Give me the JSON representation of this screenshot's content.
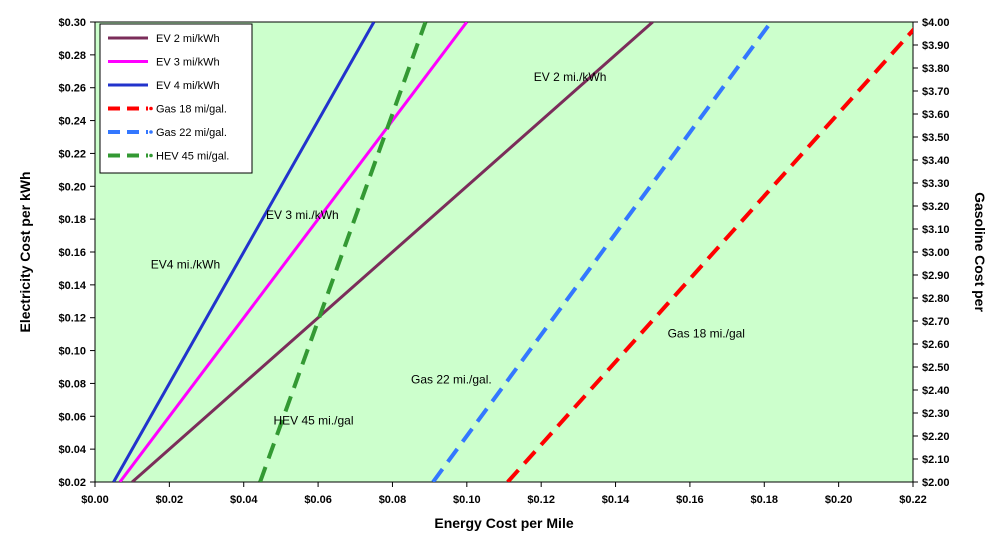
{
  "chart_data": {
    "type": "line",
    "xlabel": "Energy Cost per Mile",
    "ylabel": "Electricity Cost per kWh",
    "y2label": "Gasoline Cost per",
    "xlim": [
      0,
      0.22
    ],
    "ylim": [
      0.02,
      0.3
    ],
    "y2lim": [
      2.0,
      4.0
    ],
    "x_ticks": [
      "$0.00",
      "$0.02",
      "$0.04",
      "$0.06",
      "$0.08",
      "$0.10",
      "$0.12",
      "$0.14",
      "$0.16",
      "$0.18",
      "$0.20",
      "$0.22"
    ],
    "y_ticks": [
      "$0.02",
      "$0.04",
      "$0.06",
      "$0.08",
      "$0.10",
      "$0.12",
      "$0.14",
      "$0.16",
      "$0.18",
      "$0.20",
      "$0.22",
      "$0.24",
      "$0.26",
      "$0.28",
      "$0.30"
    ],
    "y2_ticks": [
      "$2.00",
      "$2.10",
      "$2.20",
      "$2.30",
      "$2.40",
      "$2.50",
      "$2.60",
      "$2.70",
      "$2.80",
      "$2.90",
      "$3.00",
      "$3.10",
      "$3.20",
      "$3.30",
      "$3.40",
      "$3.50",
      "$3.60",
      "$3.70",
      "$3.80",
      "$3.90",
      "$4.00"
    ],
    "grid": false,
    "background_color": "#ccffcc",
    "legend_position": "top-left",
    "series": [
      {
        "name": "EV 2 mi/kWh",
        "axis": "left",
        "dashed": false,
        "color": "#7b2d5a",
        "points": [
          [
            0.01,
            0.02
          ],
          [
            0.15,
            0.3
          ]
        ]
      },
      {
        "name": "EV 3 mi/kWh",
        "axis": "left",
        "dashed": false,
        "color": "#ff00ff",
        "points": [
          [
            0.0067,
            0.02
          ],
          [
            0.1,
            0.3
          ]
        ]
      },
      {
        "name": "EV 4 mi/kWh",
        "axis": "left",
        "dashed": false,
        "color": "#2233cc",
        "points": [
          [
            0.005,
            0.02
          ],
          [
            0.075,
            0.3
          ]
        ]
      },
      {
        "name": "Gas 18 mi/gal.",
        "axis": "right",
        "dashed": true,
        "color": "#ff0000",
        "points": [
          [
            0.111,
            2.0
          ],
          [
            0.222,
            4.0
          ]
        ]
      },
      {
        "name": "Gas 22 mi/gal.",
        "axis": "right",
        "dashed": true,
        "color": "#3377ff",
        "points": [
          [
            0.0909,
            2.0
          ],
          [
            0.1818,
            4.0
          ]
        ]
      },
      {
        "name": "HEV 45 mi/gal.",
        "axis": "right",
        "dashed": true,
        "color": "#339933",
        "points": [
          [
            0.0444,
            2.0
          ],
          [
            0.0889,
            4.0
          ]
        ]
      }
    ],
    "annotations": [
      {
        "text": "EV 2 mi./kWh",
        "x": 0.118,
        "y": 0.264
      },
      {
        "text": "EV 3 mi./kWh",
        "x": 0.046,
        "y": 0.18
      },
      {
        "text": "EV4 mi./kWh",
        "x": 0.015,
        "y": 0.15
      },
      {
        "text": "Gas 18 mi./gal",
        "x": 0.154,
        "y": 0.108
      },
      {
        "text": "Gas 22 mi./gal.",
        "x": 0.085,
        "y": 0.08
      },
      {
        "text": "HEV 45 mi./gal",
        "x": 0.048,
        "y": 0.055
      }
    ]
  }
}
